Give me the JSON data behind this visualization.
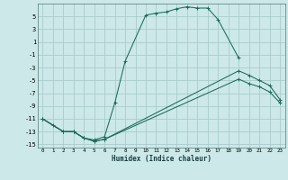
{
  "xlabel": "Humidex (Indice chaleur)",
  "bg_color": "#cce8e8",
  "grid_color": "#aacccc",
  "line_color": "#1a6b5a",
  "xlim": [
    -0.5,
    23.5
  ],
  "ylim": [
    -15.5,
    7.0
  ],
  "xticks": [
    0,
    1,
    2,
    3,
    4,
    5,
    6,
    7,
    8,
    9,
    10,
    11,
    12,
    13,
    14,
    15,
    16,
    17,
    18,
    19,
    20,
    21,
    22,
    23
  ],
  "yticks": [
    -15,
    -13,
    -11,
    -9,
    -7,
    -5,
    -3,
    -1,
    1,
    3,
    5
  ],
  "line1_x": [
    0,
    1,
    2,
    3,
    4,
    5,
    6,
    7,
    8,
    10,
    11,
    12,
    13,
    14,
    15,
    16,
    17,
    19
  ],
  "line1_y": [
    -11,
    -12,
    -13,
    -13,
    -14,
    -14.3,
    -13.8,
    -8.5,
    -2.0,
    5.2,
    5.5,
    5.7,
    6.2,
    6.5,
    6.3,
    6.3,
    4.5,
    -1.5
  ],
  "line2_x": [
    0,
    2,
    3,
    4,
    5,
    6,
    19,
    20,
    21,
    22,
    23
  ],
  "line2_y": [
    -11,
    -13,
    -13,
    -14,
    -14.5,
    -14.2,
    -3.5,
    -4.2,
    -5.0,
    -5.8,
    -8.0
  ],
  "line3_x": [
    0,
    2,
    3,
    4,
    5,
    6,
    19,
    20,
    21,
    22,
    23
  ],
  "line3_y": [
    -11,
    -13,
    -13,
    -14,
    -14.5,
    -14.2,
    -4.8,
    -5.5,
    -6.0,
    -6.8,
    -8.5
  ]
}
